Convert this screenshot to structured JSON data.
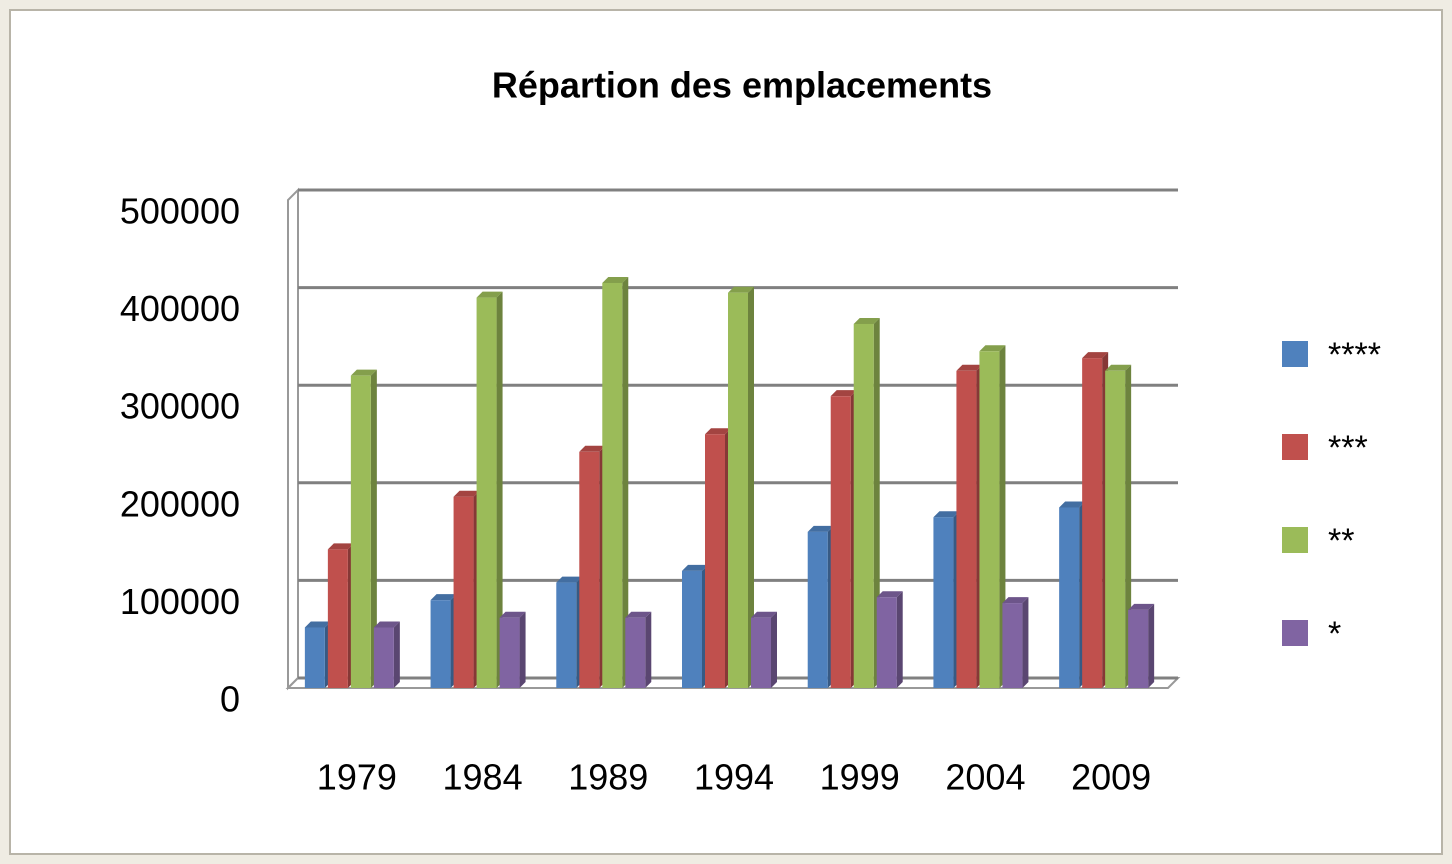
{
  "chart_data": {
    "type": "bar",
    "title": "Répartion des emplacements",
    "categories": [
      "1979",
      "1984",
      "1989",
      "1994",
      "1999",
      "2004",
      "2009"
    ],
    "series": [
      {
        "name": "****",
        "color": "#4f81bd",
        "values": [
          62000,
          90000,
          108000,
          120000,
          160000,
          175000,
          185000
        ]
      },
      {
        "name": "***",
        "color": "#c0504d",
        "values": [
          142000,
          196000,
          242000,
          260000,
          299000,
          325000,
          338000
        ]
      },
      {
        "name": "**",
        "color": "#9bbb59",
        "values": [
          320000,
          400000,
          415000,
          405000,
          373000,
          345000,
          325000
        ]
      },
      {
        "name": "*",
        "color": "#8064a2",
        "values": [
          62000,
          72000,
          72000,
          72000,
          93000,
          87000,
          80000
        ]
      }
    ],
    "ylim": [
      0,
      500000
    ],
    "yticks": [
      0,
      100000,
      200000,
      300000,
      400000,
      500000
    ],
    "grid": true,
    "legend": "right"
  }
}
